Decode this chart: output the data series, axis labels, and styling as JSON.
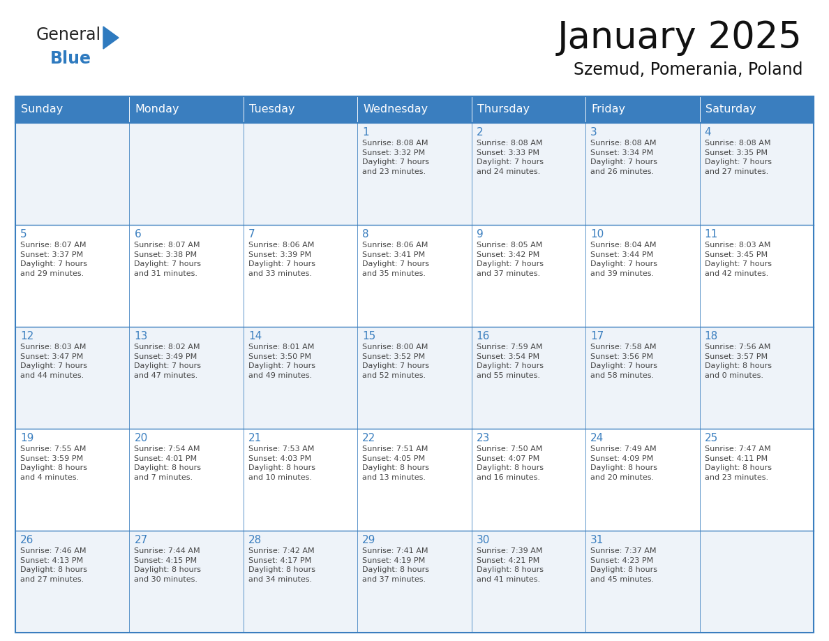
{
  "title": "January 2025",
  "subtitle": "Szemud, Pomerania, Poland",
  "header_bg_color": "#3a7ebf",
  "header_text_color": "#ffffff",
  "row_even_bg": "#eef3f9",
  "row_odd_bg": "#ffffff",
  "border_color": "#3a7ebf",
  "day_number_color": "#3a7ebf",
  "text_color": "#444444",
  "day_headers": [
    "Sunday",
    "Monday",
    "Tuesday",
    "Wednesday",
    "Thursday",
    "Friday",
    "Saturday"
  ],
  "title_fontsize": 38,
  "subtitle_fontsize": 17,
  "header_fontsize": 11.5,
  "day_num_fontsize": 11,
  "cell_text_fontsize": 8,
  "logo_general_color": "#222222",
  "logo_blue_color": "#2e7abf",
  "logo_triangle_color": "#2e7abf",
  "weeks": [
    [
      {
        "day": "",
        "info": ""
      },
      {
        "day": "",
        "info": ""
      },
      {
        "day": "",
        "info": ""
      },
      {
        "day": "1",
        "info": "Sunrise: 8:08 AM\nSunset: 3:32 PM\nDaylight: 7 hours\nand 23 minutes."
      },
      {
        "day": "2",
        "info": "Sunrise: 8:08 AM\nSunset: 3:33 PM\nDaylight: 7 hours\nand 24 minutes."
      },
      {
        "day": "3",
        "info": "Sunrise: 8:08 AM\nSunset: 3:34 PM\nDaylight: 7 hours\nand 26 minutes."
      },
      {
        "day": "4",
        "info": "Sunrise: 8:08 AM\nSunset: 3:35 PM\nDaylight: 7 hours\nand 27 minutes."
      }
    ],
    [
      {
        "day": "5",
        "info": "Sunrise: 8:07 AM\nSunset: 3:37 PM\nDaylight: 7 hours\nand 29 minutes."
      },
      {
        "day": "6",
        "info": "Sunrise: 8:07 AM\nSunset: 3:38 PM\nDaylight: 7 hours\nand 31 minutes."
      },
      {
        "day": "7",
        "info": "Sunrise: 8:06 AM\nSunset: 3:39 PM\nDaylight: 7 hours\nand 33 minutes."
      },
      {
        "day": "8",
        "info": "Sunrise: 8:06 AM\nSunset: 3:41 PM\nDaylight: 7 hours\nand 35 minutes."
      },
      {
        "day": "9",
        "info": "Sunrise: 8:05 AM\nSunset: 3:42 PM\nDaylight: 7 hours\nand 37 minutes."
      },
      {
        "day": "10",
        "info": "Sunrise: 8:04 AM\nSunset: 3:44 PM\nDaylight: 7 hours\nand 39 minutes."
      },
      {
        "day": "11",
        "info": "Sunrise: 8:03 AM\nSunset: 3:45 PM\nDaylight: 7 hours\nand 42 minutes."
      }
    ],
    [
      {
        "day": "12",
        "info": "Sunrise: 8:03 AM\nSunset: 3:47 PM\nDaylight: 7 hours\nand 44 minutes."
      },
      {
        "day": "13",
        "info": "Sunrise: 8:02 AM\nSunset: 3:49 PM\nDaylight: 7 hours\nand 47 minutes."
      },
      {
        "day": "14",
        "info": "Sunrise: 8:01 AM\nSunset: 3:50 PM\nDaylight: 7 hours\nand 49 minutes."
      },
      {
        "day": "15",
        "info": "Sunrise: 8:00 AM\nSunset: 3:52 PM\nDaylight: 7 hours\nand 52 minutes."
      },
      {
        "day": "16",
        "info": "Sunrise: 7:59 AM\nSunset: 3:54 PM\nDaylight: 7 hours\nand 55 minutes."
      },
      {
        "day": "17",
        "info": "Sunrise: 7:58 AM\nSunset: 3:56 PM\nDaylight: 7 hours\nand 58 minutes."
      },
      {
        "day": "18",
        "info": "Sunrise: 7:56 AM\nSunset: 3:57 PM\nDaylight: 8 hours\nand 0 minutes."
      }
    ],
    [
      {
        "day": "19",
        "info": "Sunrise: 7:55 AM\nSunset: 3:59 PM\nDaylight: 8 hours\nand 4 minutes."
      },
      {
        "day": "20",
        "info": "Sunrise: 7:54 AM\nSunset: 4:01 PM\nDaylight: 8 hours\nand 7 minutes."
      },
      {
        "day": "21",
        "info": "Sunrise: 7:53 AM\nSunset: 4:03 PM\nDaylight: 8 hours\nand 10 minutes."
      },
      {
        "day": "22",
        "info": "Sunrise: 7:51 AM\nSunset: 4:05 PM\nDaylight: 8 hours\nand 13 minutes."
      },
      {
        "day": "23",
        "info": "Sunrise: 7:50 AM\nSunset: 4:07 PM\nDaylight: 8 hours\nand 16 minutes."
      },
      {
        "day": "24",
        "info": "Sunrise: 7:49 AM\nSunset: 4:09 PM\nDaylight: 8 hours\nand 20 minutes."
      },
      {
        "day": "25",
        "info": "Sunrise: 7:47 AM\nSunset: 4:11 PM\nDaylight: 8 hours\nand 23 minutes."
      }
    ],
    [
      {
        "day": "26",
        "info": "Sunrise: 7:46 AM\nSunset: 4:13 PM\nDaylight: 8 hours\nand 27 minutes."
      },
      {
        "day": "27",
        "info": "Sunrise: 7:44 AM\nSunset: 4:15 PM\nDaylight: 8 hours\nand 30 minutes."
      },
      {
        "day": "28",
        "info": "Sunrise: 7:42 AM\nSunset: 4:17 PM\nDaylight: 8 hours\nand 34 minutes."
      },
      {
        "day": "29",
        "info": "Sunrise: 7:41 AM\nSunset: 4:19 PM\nDaylight: 8 hours\nand 37 minutes."
      },
      {
        "day": "30",
        "info": "Sunrise: 7:39 AM\nSunset: 4:21 PM\nDaylight: 8 hours\nand 41 minutes."
      },
      {
        "day": "31",
        "info": "Sunrise: 7:37 AM\nSunset: 4:23 PM\nDaylight: 8 hours\nand 45 minutes."
      },
      {
        "day": "",
        "info": ""
      }
    ]
  ]
}
